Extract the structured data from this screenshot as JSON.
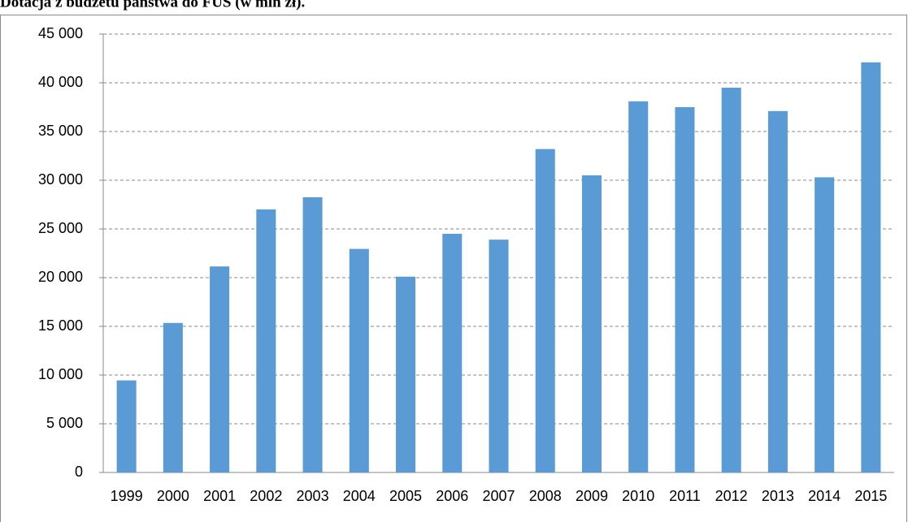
{
  "chart_data": {
    "type": "bar",
    "title": "Dotacja z budżetu państwa do FUS (w mln zł).",
    "categories": [
      "1999",
      "2000",
      "2001",
      "2002",
      "2003",
      "2004",
      "2005",
      "2006",
      "2007",
      "2008",
      "2009",
      "2010",
      "2011",
      "2012",
      "2013",
      "2014",
      "2015"
    ],
    "values": [
      9450,
      15350,
      21150,
      27000,
      28250,
      22950,
      20100,
      24500,
      23900,
      33200,
      30500,
      38100,
      37500,
      39500,
      37100,
      30300,
      42100
    ],
    "color": "#5b9bd5",
    "ylim": [
      0,
      45000
    ],
    "yticks": [
      {
        "value": 0,
        "label": "0"
      },
      {
        "value": 5000,
        "label": "5 000"
      },
      {
        "value": 10000,
        "label": "10 000"
      },
      {
        "value": 15000,
        "label": "15 000"
      },
      {
        "value": 20000,
        "label": "20 000"
      },
      {
        "value": 25000,
        "label": "25 000"
      },
      {
        "value": 30000,
        "label": "30 000"
      },
      {
        "value": 35000,
        "label": "35 000"
      },
      {
        "value": 40000,
        "label": "40 000"
      },
      {
        "value": 45000,
        "label": "45 000"
      }
    ],
    "grid": true
  }
}
